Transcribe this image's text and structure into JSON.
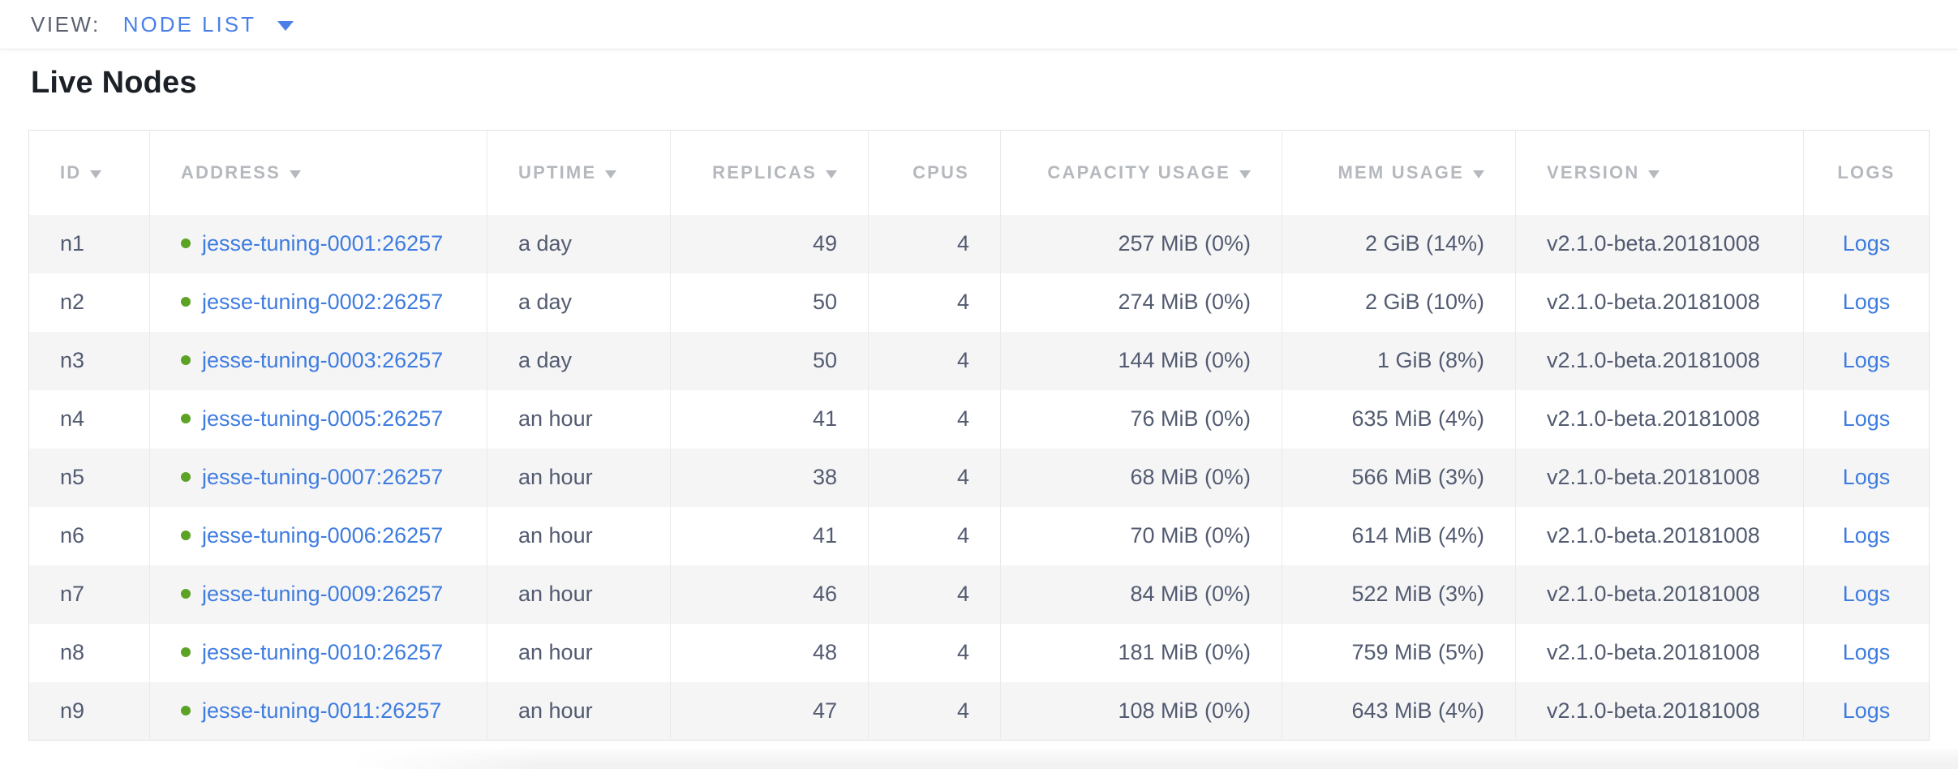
{
  "view_bar": {
    "label": "VIEW:",
    "selected": "NODE LIST"
  },
  "page": {
    "title": "Live Nodes"
  },
  "colors": {
    "link_blue": "#3e7ce0",
    "accent_blue": "#4a80e8",
    "healthy_green": "#5ca325"
  },
  "table": {
    "columns": [
      {
        "key": "id",
        "label": "ID",
        "sortable": true,
        "align": "left"
      },
      {
        "key": "address",
        "label": "ADDRESS",
        "sortable": true,
        "align": "left"
      },
      {
        "key": "uptime",
        "label": "UPTIME",
        "sortable": true,
        "align": "left"
      },
      {
        "key": "replicas",
        "label": "REPLICAS",
        "sortable": true,
        "align": "right"
      },
      {
        "key": "cpus",
        "label": "CPUS",
        "sortable": false,
        "align": "right"
      },
      {
        "key": "capacity",
        "label": "CAPACITY USAGE",
        "sortable": true,
        "align": "right"
      },
      {
        "key": "mem",
        "label": "MEM USAGE",
        "sortable": true,
        "align": "right"
      },
      {
        "key": "version",
        "label": "VERSION",
        "sortable": true,
        "align": "left"
      },
      {
        "key": "logs",
        "label": "LOGS",
        "sortable": false,
        "align": "center"
      }
    ],
    "rows": [
      {
        "id": "n1",
        "status": "live",
        "address": "jesse-tuning-0001:26257",
        "uptime": "a day",
        "replicas": "49",
        "cpus": "4",
        "capacity": "257 MiB (0%)",
        "mem": "2 GiB (14%)",
        "version": "v2.1.0-beta.20181008",
        "logs": "Logs"
      },
      {
        "id": "n2",
        "status": "live",
        "address": "jesse-tuning-0002:26257",
        "uptime": "a day",
        "replicas": "50",
        "cpus": "4",
        "capacity": "274 MiB (0%)",
        "mem": "2 GiB (10%)",
        "version": "v2.1.0-beta.20181008",
        "logs": "Logs"
      },
      {
        "id": "n3",
        "status": "live",
        "address": "jesse-tuning-0003:26257",
        "uptime": "a day",
        "replicas": "50",
        "cpus": "4",
        "capacity": "144 MiB (0%)",
        "mem": "1 GiB (8%)",
        "version": "v2.1.0-beta.20181008",
        "logs": "Logs"
      },
      {
        "id": "n4",
        "status": "live",
        "address": "jesse-tuning-0005:26257",
        "uptime": "an hour",
        "replicas": "41",
        "cpus": "4",
        "capacity": "76 MiB (0%)",
        "mem": "635 MiB (4%)",
        "version": "v2.1.0-beta.20181008",
        "logs": "Logs"
      },
      {
        "id": "n5",
        "status": "live",
        "address": "jesse-tuning-0007:26257",
        "uptime": "an hour",
        "replicas": "38",
        "cpus": "4",
        "capacity": "68 MiB (0%)",
        "mem": "566 MiB (3%)",
        "version": "v2.1.0-beta.20181008",
        "logs": "Logs"
      },
      {
        "id": "n6",
        "status": "live",
        "address": "jesse-tuning-0006:26257",
        "uptime": "an hour",
        "replicas": "41",
        "cpus": "4",
        "capacity": "70 MiB (0%)",
        "mem": "614 MiB (4%)",
        "version": "v2.1.0-beta.20181008",
        "logs": "Logs"
      },
      {
        "id": "n7",
        "status": "live",
        "address": "jesse-tuning-0009:26257",
        "uptime": "an hour",
        "replicas": "46",
        "cpus": "4",
        "capacity": "84 MiB (0%)",
        "mem": "522 MiB (3%)",
        "version": "v2.1.0-beta.20181008",
        "logs": "Logs"
      },
      {
        "id": "n8",
        "status": "live",
        "address": "jesse-tuning-0010:26257",
        "uptime": "an hour",
        "replicas": "48",
        "cpus": "4",
        "capacity": "181 MiB (0%)",
        "mem": "759 MiB (5%)",
        "version": "v2.1.0-beta.20181008",
        "logs": "Logs"
      },
      {
        "id": "n9",
        "status": "live",
        "address": "jesse-tuning-0011:26257",
        "uptime": "an hour",
        "replicas": "47",
        "cpus": "4",
        "capacity": "108 MiB (0%)",
        "mem": "643 MiB (4%)",
        "version": "v2.1.0-beta.20181008",
        "logs": "Logs"
      }
    ]
  }
}
